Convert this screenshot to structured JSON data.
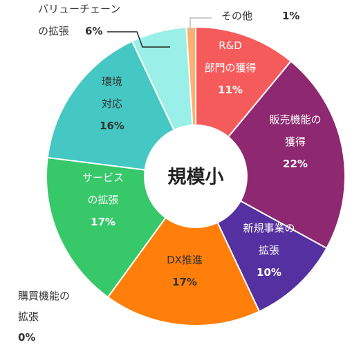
{
  "chart_data": {
    "type": "pie",
    "variant": "donut",
    "center_label": "規模小",
    "start_angle_deg": 0,
    "direction": "clockwise",
    "slices": [
      {
        "label_lines": [
          "R&D",
          "部門の獲得"
        ],
        "value": 11,
        "value_label": "11%",
        "color": "#F65B5B",
        "text_color": "#ffffff",
        "label_mode": "inside"
      },
      {
        "label_lines": [
          "販売機能の",
          "獲得"
        ],
        "value": 22,
        "value_label": "22%",
        "color": "#8E2870",
        "text_color": "#ffffff",
        "label_mode": "inside"
      },
      {
        "label_lines": [
          "新規事業の",
          "拡張"
        ],
        "value": 10,
        "value_label": "10%",
        "color": "#5530A0",
        "text_color": "#ffffff",
        "label_mode": "inside"
      },
      {
        "label_lines": [
          "DX推進"
        ],
        "value": 17,
        "value_label": "17%",
        "color": "#FF7F0A",
        "text_color": "#333333",
        "label_mode": "inside"
      },
      {
        "label_lines": [
          "購買機能の",
          "拡張"
        ],
        "value": 0,
        "value_label": "0%",
        "color": "#999999",
        "text_color": "#333333",
        "label_mode": "outside"
      },
      {
        "label_lines": [
          "サービス",
          "の拡張"
        ],
        "value": 17,
        "value_label": "17%",
        "color": "#37C86A",
        "text_color": "#ffffff",
        "label_mode": "inside"
      },
      {
        "label_lines": [
          "環境",
          "対応"
        ],
        "value": 16,
        "value_label": "16%",
        "color": "#45C8C3",
        "text_color": "#333333",
        "label_mode": "inside"
      },
      {
        "label_lines": [
          "バリューチェーン",
          "の拡張"
        ],
        "value": 6,
        "value_label": "6%",
        "color": "#9AF0E8",
        "text_color": "#333333",
        "label_mode": "outside"
      },
      {
        "label_lines": [
          "その他"
        ],
        "value": 1,
        "value_label": "1%",
        "color": "#FFB070",
        "text_color": "#333333",
        "label_mode": "outside"
      }
    ]
  }
}
